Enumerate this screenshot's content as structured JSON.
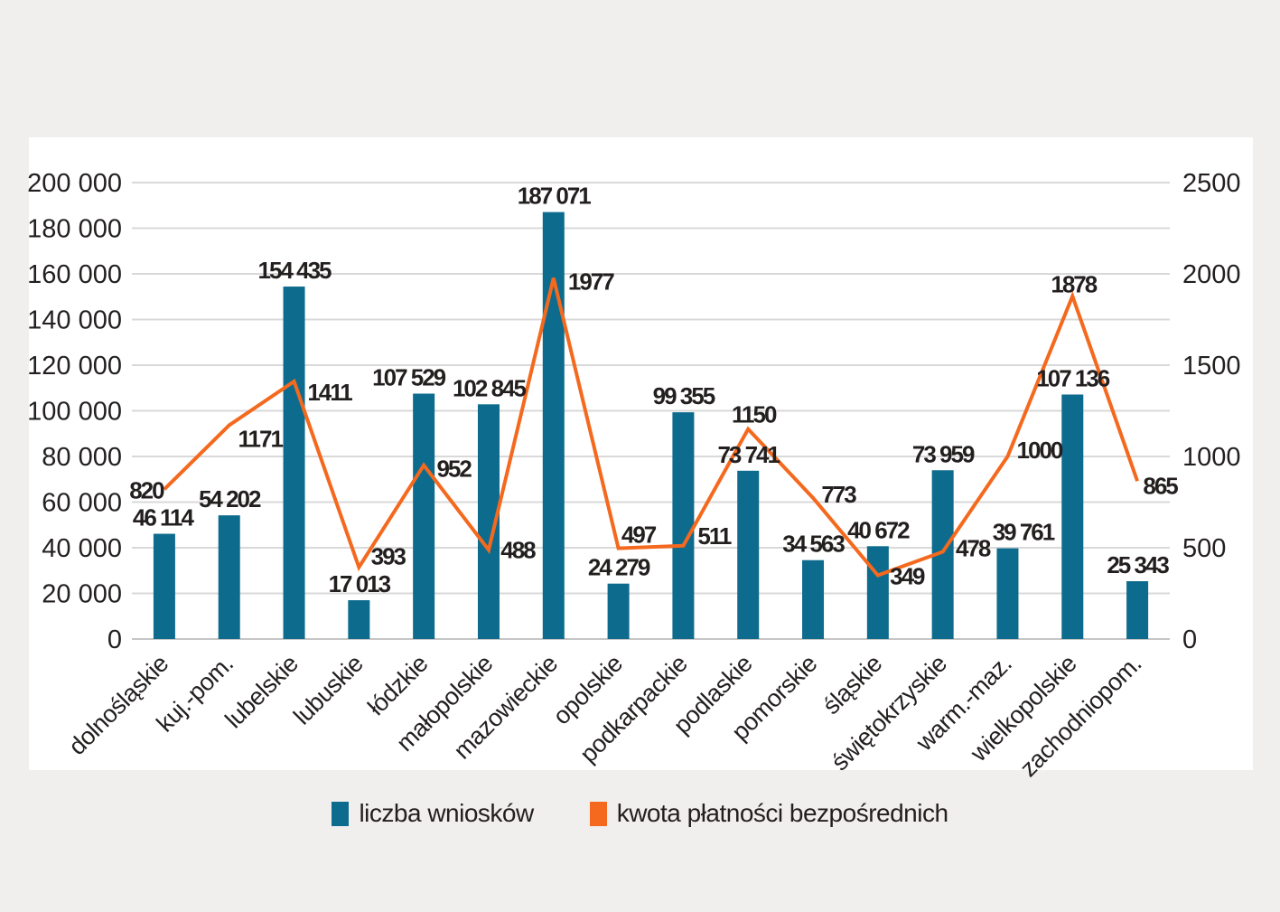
{
  "chart_data": {
    "type": "bar",
    "subtype": "bar-line-combo",
    "title": "",
    "categories": [
      "dolnośląskie",
      "kuj.-pom.",
      "lubelskie",
      "lubuskie",
      "łódzkie",
      "małopolskie",
      "mazowieckie",
      "opolskie",
      "podkarpackie",
      "podlaskie",
      "pomorskie",
      "śląskie",
      "świętokrzyskie",
      "warm.-maz.",
      "wielkopolskie",
      "zachodniopom."
    ],
    "series": [
      {
        "name": "liczba wniosków",
        "type": "bar",
        "axis": "left",
        "color": "#0d6b8d",
        "values": [
          46114,
          54202,
          154435,
          17013,
          107529,
          102845,
          187071,
          24279,
          99355,
          73741,
          34563,
          40672,
          73959,
          39761,
          107136,
          25343
        ],
        "labels": [
          "46 114",
          "54 202",
          "154 435",
          "17 013",
          "107 529",
          "102 845",
          "187 071",
          "24 279",
          "99 355",
          "73 741",
          "34 563",
          "40 672",
          "73 959",
          "39 761",
          "107 136",
          "25 343"
        ],
        "label_dx": [
          -2,
          0,
          0,
          0,
          -17,
          0,
          0,
          0,
          0,
          0,
          0,
          0,
          0,
          17,
          0,
          0
        ]
      },
      {
        "name": "kwota płatności bezpośrednich",
        "type": "line",
        "axis": "right",
        "color": "#f4691e",
        "values": [
          820,
          1171,
          1411,
          393,
          952,
          488,
          1977,
          497,
          511,
          1150,
          773,
          349,
          478,
          1000,
          1878,
          865
        ],
        "labels": [
          "820",
          "1171",
          "1411",
          "393",
          "952",
          "488",
          "1977",
          "497",
          "511",
          "1150",
          "773",
          "349",
          "478",
          "1000",
          "1878",
          "865"
        ],
        "label_dx": [
          -20,
          34,
          39,
          32,
          33,
          32,
          41,
          22,
          34,
          6,
          28,
          32,
          33,
          35,
          1,
          25
        ],
        "label_dy": [
          1,
          15,
          12,
          -12,
          4,
          0,
          4,
          -15,
          -11,
          -16,
          -4,
          1,
          -4,
          -7,
          -13,
          5
        ]
      }
    ],
    "left_axis": {
      "min": 0,
      "max": 200000,
      "tick_step": 20000,
      "tick_labels": [
        "0",
        "20 000",
        "40 000",
        "60 000",
        "80 000",
        "100 000",
        "120 000",
        "140 000",
        "160 000",
        "180 000",
        "200 000"
      ]
    },
    "right_axis": {
      "min": 0,
      "max": 2500,
      "tick_step": 500,
      "tick_labels": [
        "0",
        "500",
        "1000",
        "1500",
        "2000",
        "2500"
      ]
    },
    "grid": true,
    "legend_position": "bottom"
  },
  "legend": {
    "items": [
      {
        "label": "liczba wniosków",
        "color": "#0d6b8d"
      },
      {
        "label": "kwota płatności bezpośrednich",
        "color": "#f4691e"
      }
    ]
  },
  "colors": {
    "background": "#f0efed",
    "panel": "#ffffff",
    "gridline": "#d9d9d9",
    "baseline": "#c6c6c6",
    "text": "#231f1f",
    "bar": "#0d6b8d",
    "line": "#f4691e"
  }
}
